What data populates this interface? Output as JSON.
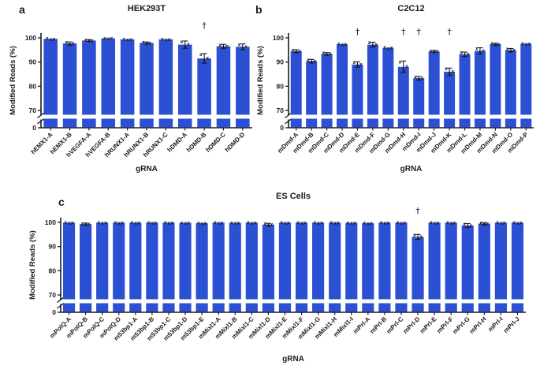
{
  "figure": {
    "background": "#ffffff",
    "bar_color": "#2c50d4",
    "axis_color": "#1b1b1b",
    "marker_glyph": "x",
    "dagger_glyph": "†"
  },
  "chart_data": [
    {
      "type": "bar",
      "panel_letter": "a",
      "title": "HEK293T",
      "xlabel": "gRNA",
      "ylabel": "Modified Reads (%)",
      "y_ticks": [
        0,
        70,
        80,
        90,
        100
      ],
      "axis_break_between": [
        0,
        70
      ],
      "ylim_upper": [
        70,
        103
      ],
      "grid": false,
      "categories": [
        "hEMX1-A",
        "hEMX1-B",
        "hVEGFA-A",
        "hVEGFA-B",
        "hRUNX1-A",
        "hRUNX1-B",
        "hRUNX1-C",
        "hDMD-A",
        "hDMD-B",
        "hDMD-C",
        "hDMD-D"
      ],
      "values": [
        99.6,
        97.7,
        98.9,
        99.8,
        99.4,
        97.9,
        99.4,
        97.2,
        91.5,
        96.5,
        96.3
      ],
      "errors": [
        0.3,
        0.6,
        0.4,
        0.2,
        0.3,
        0.4,
        0.3,
        1.5,
        2.0,
        0.8,
        1.2
      ],
      "dagger_marks": [
        "hDMD-B"
      ]
    },
    {
      "type": "bar",
      "panel_letter": "b",
      "title": "C2C12",
      "xlabel": "gRNA",
      "ylabel": "Modified Reads (%)",
      "y_ticks": [
        0,
        70,
        80,
        90,
        100
      ],
      "axis_break_between": [
        0,
        70
      ],
      "ylim_upper": [
        70,
        103
      ],
      "grid": false,
      "categories": [
        "mDmd-A",
        "mDmd-B",
        "mDmd-C",
        "mDmd-D",
        "mDmd-E",
        "mDmd-F",
        "mDmd-G",
        "mDmd-H",
        "mDmd-I",
        "mDmd-J",
        "mDmd-K",
        "mDmd-L",
        "mDmd-M",
        "mDmd-N",
        "mDmd-O",
        "mDmd-P"
      ],
      "values": [
        94.5,
        90.4,
        93.4,
        97.4,
        89.0,
        97.2,
        95.9,
        88.0,
        83.3,
        94.4,
        86.0,
        93.2,
        94.6,
        97.4,
        94.9,
        97.6
      ],
      "errors": [
        0.6,
        0.7,
        0.5,
        0.3,
        1.1,
        1.0,
        0.3,
        2.4,
        0.7,
        0.4,
        1.5,
        0.9,
        1.3,
        0.4,
        0.7,
        0.3
      ],
      "dagger_marks": [
        "mDmd-E",
        "mDmd-H",
        "mDmd-I",
        "mDmd-K"
      ]
    },
    {
      "type": "bar",
      "panel_letter": "c",
      "title": "ES Cells",
      "xlabel": "gRNA",
      "ylabel": "Modified Reads (%)",
      "y_ticks": [
        0,
        70,
        80,
        90,
        100
      ],
      "axis_break_between": [
        0,
        70
      ],
      "ylim_upper": [
        70,
        103
      ],
      "grid": false,
      "categories": [
        "mPolQ-A",
        "mPolQ-B",
        "mPolQ-C",
        "mPolQ-D",
        "m53bp1-A",
        "m53bp1-B",
        "m53bp1-C",
        "m53bp1-D",
        "m53bp1-E",
        "mMixl1-A",
        "mMixl1-B",
        "mMixl1-C",
        "mMixl1-D",
        "mMixl1-E",
        "mMixl1-F",
        "mMixl1-G",
        "mMixl1-H",
        "mMixl1-I",
        "mPrl-A",
        "mPrl-B",
        "mPrl-C",
        "mPrl-D",
        "mPrl-E",
        "mPrl-F",
        "mPrl-G",
        "mPrl-H",
        "mPrl-I",
        "mPrl-J"
      ],
      "values": [
        99.9,
        99.3,
        99.9,
        99.9,
        99.9,
        99.9,
        99.9,
        99.8,
        99.7,
        99.9,
        99.8,
        99.9,
        99.1,
        99.9,
        99.9,
        99.9,
        99.9,
        99.8,
        99.7,
        99.9,
        99.9,
        94.0,
        99.9,
        99.9,
        98.7,
        99.5,
        99.9,
        99.9
      ],
      "errors": [
        0.1,
        0.4,
        0.1,
        0.1,
        0.1,
        0.1,
        0.1,
        0.1,
        0.2,
        0.1,
        0.1,
        0.1,
        0.5,
        0.1,
        0.1,
        0.1,
        0.1,
        0.1,
        0.2,
        0.1,
        0.1,
        1.0,
        0.1,
        0.1,
        0.8,
        0.4,
        0.1,
        0.1
      ],
      "dagger_marks": [
        "mPrl-D"
      ]
    }
  ]
}
